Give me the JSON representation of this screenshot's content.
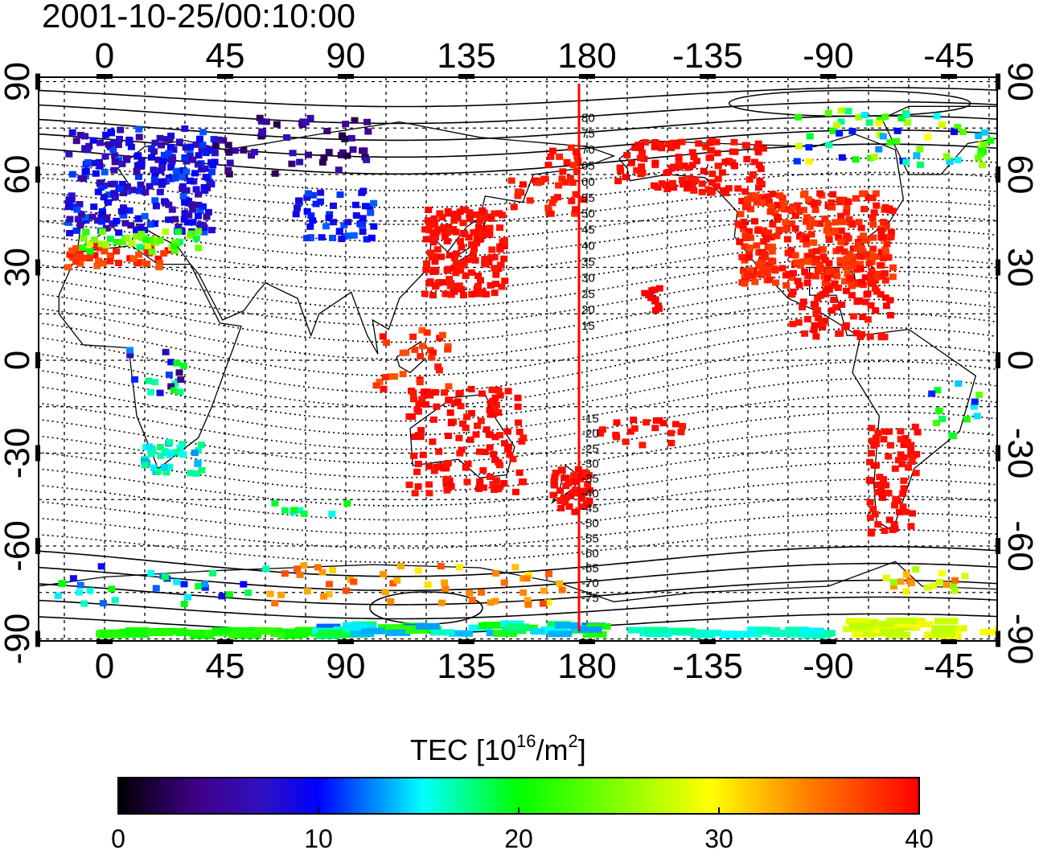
{
  "title": "2001-10-25/00:10:00",
  "axes": {
    "lon_ticks": [
      {
        "v": 0,
        "label": "0"
      },
      {
        "v": 45,
        "label": "45"
      },
      {
        "v": 90,
        "label": "90"
      },
      {
        "v": 135,
        "label": "135"
      },
      {
        "v": 180,
        "label": "180"
      },
      {
        "v": 225,
        "label": "-135"
      },
      {
        "v": 270,
        "label": "-90"
      },
      {
        "v": 315,
        "label": "-45"
      }
    ],
    "lat_ticks": [
      {
        "v": 90,
        "label": "90"
      },
      {
        "v": 60,
        "label": "60"
      },
      {
        "v": 30,
        "label": "30"
      },
      {
        "v": 0,
        "label": "0"
      },
      {
        "v": -30,
        "label": "-30"
      },
      {
        "v": -60,
        "label": "-60"
      },
      {
        "v": -90,
        "label": "-90"
      }
    ],
    "lon_range": [
      -25,
      333
    ],
    "lat_range": [
      -91,
      91
    ]
  },
  "meridian_marker": {
    "lon": 177,
    "color": "#ff0000"
  },
  "magnetic_latitude_labels": [
    "80",
    "75",
    "70",
    "65",
    "60",
    "55",
    "50",
    "45",
    "40",
    "35",
    "30",
    "25",
    "20",
    "15",
    "-15",
    "-20",
    "-25",
    "-30",
    "-35",
    "-40",
    "-45",
    "-50",
    "-55",
    "-60",
    "-65",
    "-70",
    "-75"
  ],
  "colorbar": {
    "label_main": "TEC  [10",
    "label_sup1": "16",
    "label_mid": "/m",
    "label_sup2": "2",
    "label_end": "]",
    "min": 0,
    "max": 40,
    "ticks": [
      "0",
      "10",
      "20",
      "30",
      "40"
    ],
    "stops": [
      [
        "#000000",
        0
      ],
      [
        "#40008a",
        0.1
      ],
      [
        "#3010c0",
        0.18
      ],
      [
        "#0000ff",
        0.25
      ],
      [
        "#00ffff",
        0.38
      ],
      [
        "#00ff00",
        0.5
      ],
      [
        "#ffff00",
        0.74
      ],
      [
        "#ff8000",
        0.86
      ],
      [
        "#ff0000",
        1
      ]
    ]
  },
  "tec_clusters": [
    {
      "region": "Europe",
      "lon": [
        -15,
        40
      ],
      "lat": [
        42,
        76
      ],
      "tec": [
        5,
        12
      ],
      "n": 260
    },
    {
      "region": "Iberia-NorthAfrica",
      "lon": [
        -15,
        25
      ],
      "lat": [
        31,
        38
      ],
      "tec": [
        36,
        40
      ],
      "n": 40
    },
    {
      "region": "Mediterranean",
      "lon": [
        -12,
        35
      ],
      "lat": [
        36,
        43
      ],
      "tec": [
        18,
        28
      ],
      "n": 40
    },
    {
      "region": "Russia",
      "lon": [
        40,
        100
      ],
      "lat": [
        60,
        80
      ],
      "tec": [
        2,
        7
      ],
      "n": 50
    },
    {
      "region": "CentralAsia",
      "lon": [
        70,
        100
      ],
      "lat": [
        40,
        56
      ],
      "tec": [
        8,
        12
      ],
      "n": 50
    },
    {
      "region": "EastAsia",
      "lon": [
        118,
        148
      ],
      "lat": [
        22,
        50
      ],
      "tec": [
        39,
        40
      ],
      "n": 160
    },
    {
      "region": "Kamchatka",
      "lon": [
        150,
        178
      ],
      "lat": [
        48,
        70
      ],
      "tec": [
        38,
        40
      ],
      "n": 40
    },
    {
      "region": "Indonesia",
      "lon": [
        100,
        130
      ],
      "lat": [
        -10,
        12
      ],
      "tec": [
        36,
        40
      ],
      "n": 30
    },
    {
      "region": "Australia",
      "lon": [
        112,
        155
      ],
      "lat": [
        -42,
        -8
      ],
      "tec": [
        39,
        40
      ],
      "n": 130
    },
    {
      "region": "NewZealand",
      "lon": [
        165,
        180
      ],
      "lat": [
        -48,
        -34
      ],
      "tec": [
        39,
        40
      ],
      "n": 50
    },
    {
      "region": "SouthPacific",
      "lon": [
        180,
        215
      ],
      "lat": [
        -27,
        -18
      ],
      "tec": [
        39,
        40
      ],
      "n": 20
    },
    {
      "region": "Hawaii",
      "lon": [
        200,
        206
      ],
      "lat": [
        17,
        25
      ],
      "tec": [
        40,
        40
      ],
      "n": 12
    },
    {
      "region": "Alaska",
      "lon": [
        190,
        245
      ],
      "lat": [
        55,
        72
      ],
      "tec": [
        39,
        40
      ],
      "n": 110
    },
    {
      "region": "NorthAmerica",
      "lon": [
        235,
        293
      ],
      "lat": [
        25,
        55
      ],
      "tec": [
        37,
        40
      ],
      "n": 330
    },
    {
      "region": "CentralAmerica",
      "lon": [
        255,
        292
      ],
      "lat": [
        8,
        30
      ],
      "tec": [
        39,
        40
      ],
      "n": 70
    },
    {
      "region": "SouthAmerica",
      "lon": [
        284,
        302
      ],
      "lat": [
        -55,
        -20
      ],
      "tec": [
        39,
        40
      ],
      "n": 70
    },
    {
      "region": "Brazil",
      "lon": [
        305,
        327
      ],
      "lat": [
        -25,
        -5
      ],
      "tec": [
        10,
        30
      ],
      "n": 14
    },
    {
      "region": "CanadaArctic",
      "lon": [
        255,
        330
      ],
      "lat": [
        64,
        82
      ],
      "tec": [
        8,
        30
      ],
      "n": 60
    },
    {
      "region": "AfricaEquator",
      "lon": [
        8,
        30
      ],
      "lat": [
        -10,
        5
      ],
      "tec": [
        3,
        22
      ],
      "n": 18
    },
    {
      "region": "SouthAfrica",
      "lon": [
        13,
        35
      ],
      "lat": [
        -36,
        -25
      ],
      "tec": [
        13,
        18
      ],
      "n": 40
    },
    {
      "region": "SouthernOcean",
      "lon": [
        60,
        90
      ],
      "lat": [
        -50,
        -45
      ],
      "tec": [
        15,
        22
      ],
      "n": 8
    },
    {
      "region": "AntarcticRing",
      "lon": [
        60,
        175
      ],
      "lat": [
        -78,
        -65
      ],
      "tec": [
        30,
        37
      ],
      "n": 50
    },
    {
      "region": "AntarcticCoastW",
      "lon": [
        -20,
        60
      ],
      "lat": [
        -78,
        -65
      ],
      "tec": [
        8,
        20
      ],
      "n": 30
    },
    {
      "region": "AntarcticCoastE",
      "lon": [
        290,
        320
      ],
      "lat": [
        -74,
        -66
      ],
      "tec": [
        25,
        36
      ],
      "n": 18
    },
    {
      "region": "PoleBand1",
      "lon": [
        -5,
        80
      ],
      "lat": [
        -88,
        -86
      ],
      "tec": [
        20,
        22
      ],
      "n": 40
    },
    {
      "region": "PoleBand2",
      "lon": [
        75,
        180
      ],
      "lat": [
        -88,
        -84
      ],
      "tec": [
        12,
        22
      ],
      "n": 50
    },
    {
      "region": "PoleBand3",
      "lon": [
        195,
        265
      ],
      "lat": [
        -88,
        -86
      ],
      "tec": [
        15,
        17
      ],
      "n": 30
    },
    {
      "region": "PoleBand4",
      "lon": [
        275,
        335
      ],
      "lat": [
        -88,
        -83
      ],
      "tec": [
        27,
        30
      ],
      "n": 35
    }
  ]
}
